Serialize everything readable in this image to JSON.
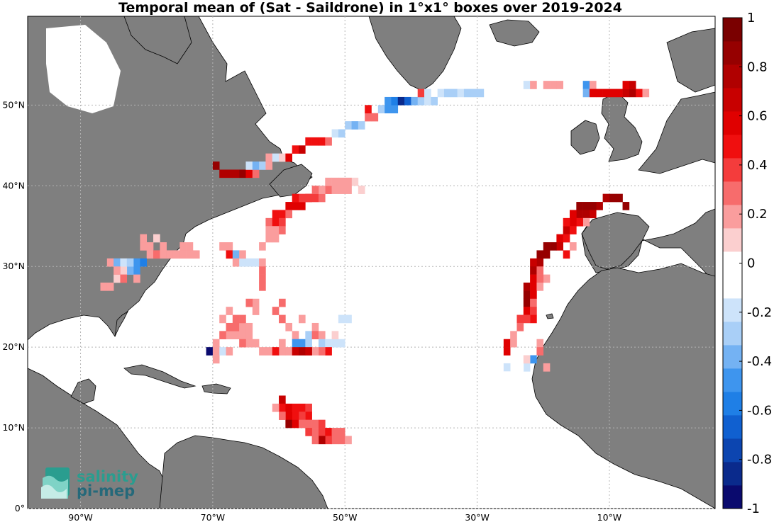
{
  "title": "Temporal mean of (Sat - Saildrone) in 1°x1° boxes over 2019-2024",
  "lon_ticks": [
    "90°W",
    "70°W",
    "50°W",
    "30°W",
    "10°W"
  ],
  "lat_ticks": [
    "0°",
    "10°N",
    "20°N",
    "30°N",
    "40°N",
    "50°N"
  ],
  "colorbar": {
    "tick_labels": [
      "1",
      "0.8",
      "0.6",
      "0.4",
      "0.2",
      "0",
      "-0.2",
      "-0.4",
      "-0.6",
      "-0.8",
      "-1"
    ],
    "range": [
      -1,
      1
    ],
    "colors": [
      "#0a0a6e",
      "#0a2a8c",
      "#0c45b0",
      "#1060d0",
      "#1f7fe6",
      "#3e95ee",
      "#74b2f3",
      "#a9cff7",
      "#cde3fa",
      "#ffffff",
      "#ffffff",
      "#fbcfcf",
      "#fa9d9d",
      "#f76c6c",
      "#f43c3c",
      "#f00f0f",
      "#e00000",
      "#c80000",
      "#b00000",
      "#960000",
      "#7a0000"
    ]
  },
  "logo": {
    "line1": "salinity",
    "line2": "pi-mep"
  },
  "colors": {
    "land": "#7f7f7f",
    "ocean": "#ffffff",
    "grid": "#b4b4b4"
  },
  "map_extent": {
    "lon": [
      -98,
      6
    ],
    "lat": [
      0,
      61
    ]
  },
  "chart_data": {
    "type": "heatmap",
    "title": "Temporal mean of (Sat - Saildrone) in 1°x1° boxes over 2019-2024",
    "value_range": [
      -1,
      1
    ],
    "cells": [
      [
        -87,
        27,
        0.15
      ],
      [
        -86,
        27,
        0.15
      ],
      [
        -85,
        28,
        0.1
      ],
      [
        -81,
        32,
        0.2
      ],
      [
        -80,
        32,
        0.2
      ],
      [
        -81,
        33,
        0.15
      ],
      [
        -79,
        33,
        0.1
      ],
      [
        -80,
        31,
        0.15
      ],
      [
        -79,
        31,
        0.3
      ],
      [
        -78,
        31,
        0.2
      ],
      [
        -78,
        32,
        0.15
      ],
      [
        -77,
        31,
        0.2
      ],
      [
        -76,
        31,
        0.2
      ],
      [
        -75,
        32,
        0.2
      ],
      [
        -75,
        31,
        0.2
      ],
      [
        -74,
        32,
        0.2
      ],
      [
        -74,
        31,
        0.2
      ],
      [
        -73,
        31,
        0.2
      ],
      [
        -82,
        30,
        -0.45
      ],
      [
        -81,
        30,
        -0.55
      ],
      [
        -82,
        29,
        -0.5
      ],
      [
        -83,
        29,
        -0.35
      ],
      [
        -82,
        28,
        0.2
      ],
      [
        -84,
        29,
        0.1
      ],
      [
        -84,
        28,
        0.3
      ],
      [
        -86,
        30,
        0.2
      ],
      [
        -85,
        30,
        -0.4
      ],
      [
        -84,
        30,
        -0.2
      ],
      [
        -83,
        30,
        -0.3
      ],
      [
        -85,
        29,
        0.2
      ],
      [
        -69,
        32,
        0.15
      ],
      [
        -68,
        32,
        0.2
      ],
      [
        -68,
        31,
        0.5
      ],
      [
        -67,
        31,
        -0.4
      ],
      [
        -67,
        30,
        0.2
      ],
      [
        -66,
        30,
        -0.2
      ],
      [
        -65,
        30,
        -0.2
      ],
      [
        -64,
        30,
        -0.2
      ],
      [
        -66,
        31,
        0.15
      ],
      [
        -63,
        32,
        0.2
      ],
      [
        -63,
        30,
        0.2
      ],
      [
        -63,
        29,
        0.3
      ],
      [
        -63,
        28,
        0.3
      ],
      [
        -63,
        27,
        0.3
      ],
      [
        -64,
        25,
        0.2
      ],
      [
        -65,
        25,
        0.25
      ],
      [
        -64,
        24,
        0.2
      ],
      [
        -60,
        25,
        0.3
      ],
      [
        -61,
        24,
        0.25
      ],
      [
        -60,
        23,
        0.3
      ],
      [
        -59,
        22,
        0.2
      ],
      [
        -58,
        21,
        0.2
      ],
      [
        -58,
        20,
        -0.45
      ],
      [
        -57,
        20,
        -0.5
      ],
      [
        -56,
        21,
        -0.3
      ],
      [
        -56,
        20,
        -0.3
      ],
      [
        -55,
        22,
        0.2
      ],
      [
        -55,
        21,
        0.25
      ],
      [
        -57,
        23,
        0.2
      ],
      [
        -54,
        21,
        0.2
      ],
      [
        -54,
        20,
        -0.3
      ],
      [
        -53,
        20,
        -0.2
      ],
      [
        -52,
        20,
        -0.2
      ],
      [
        -51,
        20,
        -0.2
      ],
      [
        -53,
        19,
        0.5
      ],
      [
        -54,
        19,
        0.3
      ],
      [
        -55,
        19,
        0.2
      ],
      [
        -56,
        19,
        0.1
      ],
      [
        -60,
        19,
        0.2
      ],
      [
        -59,
        19,
        0.2
      ],
      [
        -58,
        19,
        0.7
      ],
      [
        -57,
        19,
        0.8
      ],
      [
        -56,
        19,
        0.7
      ],
      [
        -52,
        21,
        0.1
      ],
      [
        -51,
        23,
        -0.2
      ],
      [
        -50,
        23,
        -0.2
      ],
      [
        -63,
        19,
        0.2
      ],
      [
        -62,
        19,
        0.2
      ],
      [
        -61,
        19,
        0.5
      ],
      [
        -60,
        20,
        0.2
      ],
      [
        -64,
        20,
        0.2
      ],
      [
        -65,
        20,
        0.2
      ],
      [
        -66,
        21,
        0.15
      ],
      [
        -67,
        21,
        0.2
      ],
      [
        -68,
        21,
        0.2
      ],
      [
        -68,
        22,
        0.25
      ],
      [
        -67,
        22,
        0.3
      ],
      [
        -66,
        22,
        0.2
      ],
      [
        -66,
        23,
        0.3
      ],
      [
        -67,
        23,
        0.3
      ],
      [
        -68,
        24,
        0.2
      ],
      [
        -69,
        23,
        0.2
      ],
      [
        -69,
        21,
        0.25
      ],
      [
        -70,
        20,
        0.2
      ],
      [
        -71,
        19,
        -1.0
      ],
      [
        -70,
        19,
        0.2
      ],
      [
        -69,
        19,
        -0.2
      ],
      [
        -70,
        18,
        0.2
      ],
      [
        -68,
        19,
        0.15
      ],
      [
        -66,
        20,
        0.3
      ],
      [
        -65,
        21,
        0.2
      ],
      [
        -65,
        22,
        0.2
      ],
      [
        -60,
        13,
        0.7
      ],
      [
        -60,
        12,
        0.5
      ],
      [
        -59,
        12,
        0.6
      ],
      [
        -58,
        12,
        0.5
      ],
      [
        -57,
        12,
        0.5
      ],
      [
        -56,
        12,
        0.4
      ],
      [
        -56,
        11,
        0.5
      ],
      [
        -57,
        11,
        0.4
      ],
      [
        -58,
        11,
        0.5
      ],
      [
        -59,
        11,
        0.6
      ],
      [
        -59,
        10,
        0.9
      ],
      [
        -58,
        10,
        0.6
      ],
      [
        -57,
        10,
        0.3
      ],
      [
        -56,
        10,
        0.3
      ],
      [
        -55,
        10,
        0.3
      ],
      [
        -54,
        10,
        0.4
      ],
      [
        -55,
        9,
        0.3
      ],
      [
        -54,
        9,
        0.4
      ],
      [
        -53,
        9,
        0.5
      ],
      [
        -52,
        9,
        0.3
      ],
      [
        -51,
        9,
        0.3
      ],
      [
        -51,
        8,
        0.3
      ],
      [
        -50,
        8,
        0.2
      ],
      [
        -52,
        8,
        0.3
      ],
      [
        -53,
        8,
        0.4
      ],
      [
        -54,
        8,
        0.8
      ],
      [
        -55,
        8,
        0.3
      ],
      [
        -56,
        9,
        0.4
      ],
      [
        -60,
        11,
        0.3
      ],
      [
        -61,
        12,
        0.2
      ],
      [
        -70,
        42,
        0.85
      ],
      [
        -69,
        41,
        0.8
      ],
      [
        -68,
        41,
        0.8
      ],
      [
        -67,
        41,
        0.8
      ],
      [
        -66,
        41,
        0.85
      ],
      [
        -65,
        41,
        0.6
      ],
      [
        -64,
        41,
        0.3
      ],
      [
        -65,
        42,
        -0.2
      ],
      [
        -64,
        42,
        -0.4
      ],
      [
        -63,
        42,
        -0.3
      ],
      [
        -62,
        42,
        0.2
      ],
      [
        -62,
        43,
        0.2
      ],
      [
        -61,
        43,
        -0.2
      ],
      [
        -60,
        43,
        0.1
      ],
      [
        -59,
        43,
        0.6
      ],
      [
        -58,
        44,
        0.5
      ],
      [
        -57,
        44,
        0.7
      ],
      [
        -56,
        45,
        0.5
      ],
      [
        -55,
        45,
        0.5
      ],
      [
        -54,
        45,
        0.5
      ],
      [
        -53,
        45,
        0.3
      ],
      [
        -52,
        46,
        -0.2
      ],
      [
        -51,
        46,
        -0.3
      ],
      [
        -50,
        47,
        -0.3
      ],
      [
        -49,
        47,
        -0.4
      ],
      [
        -48,
        47,
        -0.3
      ],
      [
        -47,
        48,
        0.3
      ],
      [
        -46,
        48,
        0.3
      ],
      [
        -47,
        49,
        0.5
      ],
      [
        -45,
        49,
        -0.3
      ],
      [
        -44,
        49,
        -0.5
      ],
      [
        -43,
        49,
        -0.5
      ],
      [
        -44,
        50,
        -0.5
      ],
      [
        -43,
        50,
        -0.6
      ],
      [
        -42,
        50,
        -0.9
      ],
      [
        -41,
        50,
        -0.7
      ],
      [
        -40,
        50,
        -0.4
      ],
      [
        -39,
        50,
        -0.3
      ],
      [
        -38,
        50,
        -0.2
      ],
      [
        -37,
        50,
        -0.3
      ],
      [
        -39,
        51,
        0.4
      ],
      [
        -38,
        51,
        -0.2
      ],
      [
        -36,
        51,
        -0.2
      ],
      [
        -35,
        51,
        -0.3
      ],
      [
        -34,
        51,
        -0.3
      ],
      [
        -33,
        51,
        -0.2
      ],
      [
        -30,
        51,
        -0.3
      ],
      [
        -25,
        52,
        -0.1
      ],
      [
        -23,
        52,
        -0.2
      ],
      [
        -22,
        52,
        0.2
      ],
      [
        -20,
        52,
        0.15
      ],
      [
        -19,
        52,
        0.15
      ],
      [
        -18,
        52,
        0.15
      ],
      [
        -14,
        52,
        -0.5
      ],
      [
        -14,
        51,
        -0.4
      ],
      [
        -13,
        52,
        0.2
      ],
      [
        -13,
        51,
        0.6
      ],
      [
        -12,
        51,
        0.6
      ],
      [
        -11,
        51,
        0.6
      ],
      [
        -10,
        51,
        0.6
      ],
      [
        -9,
        51,
        0.6
      ],
      [
        -8,
        51,
        0.7
      ],
      [
        -7,
        51,
        0.75
      ],
      [
        -6,
        51,
        0.5
      ],
      [
        -5,
        51,
        0.2
      ],
      [
        -8,
        52,
        0.6
      ],
      [
        -7,
        52,
        0.7
      ],
      [
        -10,
        38,
        0.9
      ],
      [
        -9,
        38,
        0.9
      ],
      [
        -8,
        37,
        0.9
      ],
      [
        -11,
        38,
        0.8
      ],
      [
        -12,
        37,
        0.8
      ],
      [
        -13,
        37,
        0.85
      ],
      [
        -14,
        37,
        0.85
      ],
      [
        -15,
        37,
        0.85
      ],
      [
        -13,
        36,
        0.7
      ],
      [
        -14,
        36,
        0.8
      ],
      [
        -15,
        36,
        0.8
      ],
      [
        -16,
        36,
        0.6
      ],
      [
        -14,
        35,
        0.2
      ],
      [
        -15,
        35,
        0.5
      ],
      [
        -16,
        35,
        0.6
      ],
      [
        -17,
        34,
        0.7
      ],
      [
        -17,
        35,
        0.5
      ],
      [
        -16,
        34,
        0.5
      ],
      [
        -18,
        33,
        0.6
      ],
      [
        -17,
        33,
        0.5
      ],
      [
        -18,
        32,
        0.7
      ],
      [
        -19,
        32,
        0.85
      ],
      [
        -20,
        32,
        0.85
      ],
      [
        -16,
        32,
        0.2
      ],
      [
        -17,
        31,
        0.5
      ],
      [
        -20,
        31,
        0.85
      ],
      [
        -21,
        31,
        0.85
      ],
      [
        -21,
        30,
        0.8
      ],
      [
        -22,
        30,
        0.7
      ],
      [
        -22,
        29,
        0.8
      ],
      [
        -21,
        29,
        0.3
      ],
      [
        -22,
        28,
        0.6
      ],
      [
        -20,
        28,
        0.2
      ],
      [
        -21,
        28,
        0.3
      ],
      [
        -23,
        27,
        0.8
      ],
      [
        -22,
        27,
        0.6
      ],
      [
        -21,
        27,
        0.2
      ],
      [
        -23,
        26,
        0.9
      ],
      [
        -22,
        26,
        0.6
      ],
      [
        -23,
        25,
        0.85
      ],
      [
        -22,
        25,
        0.3
      ],
      [
        -23,
        24,
        0.6
      ],
      [
        -22,
        24,
        0.4
      ],
      [
        -22,
        23,
        0.5
      ],
      [
        -23,
        23,
        0.4
      ],
      [
        -24,
        23,
        0.4
      ],
      [
        -24,
        22,
        0.3
      ],
      [
        -25,
        21,
        0.2
      ],
      [
        -26,
        20,
        0.6
      ],
      [
        -26,
        19,
        0.6
      ],
      [
        -25,
        20,
        0.2
      ],
      [
        -21,
        20,
        0.2
      ],
      [
        -21,
        19,
        0.3
      ],
      [
        -22,
        18,
        -0.5
      ],
      [
        -23,
        17,
        -0.2
      ],
      [
        -24,
        17,
        -0.1
      ],
      [
        -25,
        17,
        -0.1
      ],
      [
        -26,
        17,
        -0.2
      ],
      [
        -26,
        16,
        -0.1
      ],
      [
        -26,
        15,
        -0.1
      ],
      [
        -20,
        17,
        0.2
      ],
      [
        -23,
        18,
        0.1
      ],
      [
        -58,
        37,
        0.6
      ],
      [
        -57,
        37,
        0.6
      ],
      [
        -56,
        38,
        0.5
      ],
      [
        -55,
        38,
        0.4
      ],
      [
        -54,
        38,
        0.3
      ],
      [
        -53,
        39,
        0.3
      ],
      [
        -52,
        39,
        0.2
      ],
      [
        -51,
        39,
        0.2
      ],
      [
        -50,
        39,
        0.15
      ],
      [
        -49,
        40,
        0.1
      ],
      [
        -50,
        40,
        0.15
      ],
      [
        -51,
        40,
        0.15
      ],
      [
        -52,
        40,
        0.15
      ],
      [
        -53,
        40,
        0.15
      ],
      [
        -54,
        39,
        0.2
      ],
      [
        -55,
        39,
        0.25
      ],
      [
        -56,
        38,
        0.4
      ],
      [
        -57,
        38,
        0.4
      ],
      [
        -58,
        38,
        0.5
      ],
      [
        -59,
        37,
        0.6
      ],
      [
        -60,
        36,
        0.5
      ],
      [
        -61,
        36,
        0.5
      ],
      [
        -62,
        35,
        0.3
      ],
      [
        -61,
        35,
        0.5
      ],
      [
        -60,
        35,
        0.4
      ],
      [
        -62,
        34,
        0.2
      ],
      [
        -61,
        34,
        0.2
      ],
      [
        -62,
        33,
        0.2
      ],
      [
        -61,
        33,
        0.2
      ],
      [
        -60,
        34,
        0.3
      ],
      [
        -59,
        36,
        0.3
      ],
      [
        -48,
        39,
        0.1
      ],
      [
        -32,
        51,
        -0.25
      ],
      [
        -31,
        51,
        -0.3
      ]
    ]
  }
}
